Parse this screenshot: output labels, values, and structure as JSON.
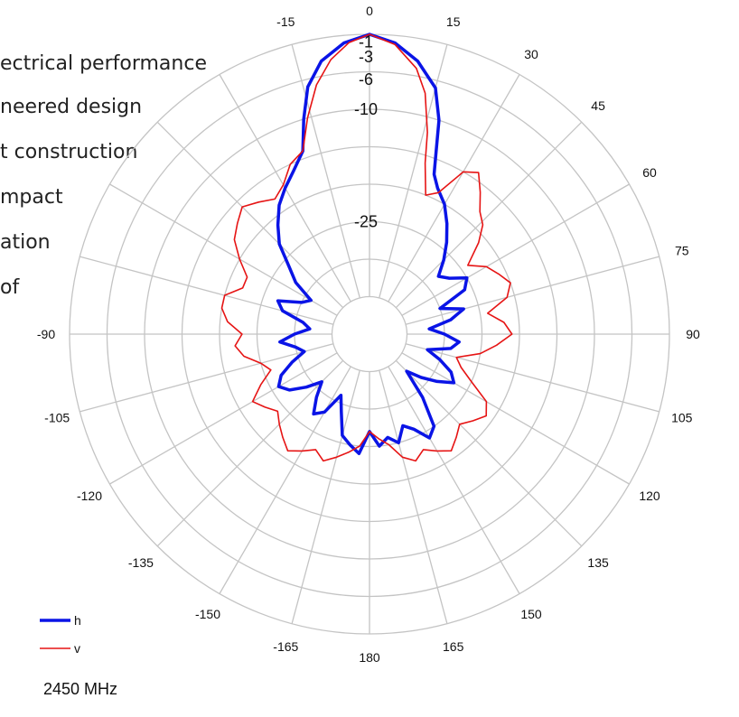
{
  "background_text": [
    "ectrical performance",
    "neered design",
    "t construction",
    "mpact",
    "ation",
    "of"
  ],
  "chart_data": {
    "type": "polar-line",
    "angle_ticks": [
      0,
      15,
      30,
      45,
      60,
      75,
      90,
      105,
      120,
      135,
      150,
      165,
      180,
      -165,
      -150,
      -135,
      -120,
      -105,
      -90,
      -75,
      -60,
      -45,
      -30,
      -15
    ],
    "angle_labels": [
      "0",
      "15",
      "30",
      "45",
      "60",
      "75",
      "90",
      "105",
      "120",
      "135",
      "150",
      "165",
      "180",
      "-165",
      "-150",
      "-135",
      "-120",
      "-105",
      "-90",
      "",
      "",
      "",
      "",
      "-15"
    ],
    "radial_labels": [
      "-1",
      "-3",
      "-6",
      "-10",
      "-25"
    ],
    "series": [
      {
        "name": "h",
        "color": "#0a14e6",
        "points": [
          [
            0,
            0
          ],
          [
            5,
            -1
          ],
          [
            10,
            -3
          ],
          [
            15,
            -6
          ],
          [
            18,
            -10
          ],
          [
            20,
            -14
          ],
          [
            22,
            -17
          ],
          [
            25,
            -18.5
          ],
          [
            30,
            -20
          ],
          [
            35,
            -22
          ],
          [
            40,
            -24
          ],
          [
            45,
            -26
          ],
          [
            50,
            -28
          ],
          [
            55,
            -27
          ],
          [
            60,
            -25
          ],
          [
            65,
            -26
          ],
          [
            70,
            -30
          ],
          [
            75,
            -27
          ],
          [
            80,
            -29
          ],
          [
            85,
            -32
          ],
          [
            90,
            -30
          ],
          [
            95,
            -28
          ],
          [
            100,
            -29
          ],
          [
            105,
            -32
          ],
          [
            110,
            -30
          ],
          [
            115,
            -28
          ],
          [
            120,
            -27
          ],
          [
            125,
            -29
          ],
          [
            130,
            -31
          ],
          [
            135,
            -33
          ],
          [
            140,
            -29
          ],
          [
            145,
            -25
          ],
          [
            150,
            -24
          ],
          [
            155,
            -26
          ],
          [
            160,
            -27
          ],
          [
            165,
            -25
          ],
          [
            170,
            -26
          ],
          [
            175,
            -25
          ],
          [
            180,
            -27
          ],
          [
            -175,
            -24
          ],
          [
            -170,
            -25
          ],
          [
            -165,
            -26
          ],
          [
            -160,
            -29
          ],
          [
            -155,
            -31
          ],
          [
            -150,
            -28
          ],
          [
            -145,
            -27
          ],
          [
            -140,
            -29
          ],
          [
            -135,
            -31
          ],
          [
            -130,
            -29
          ],
          [
            -125,
            -27
          ],
          [
            -120,
            -26
          ],
          [
            -115,
            -27
          ],
          [
            -110,
            -29
          ],
          [
            -105,
            -31
          ],
          [
            -100,
            -30
          ],
          [
            -95,
            -28
          ],
          [
            -90,
            -30
          ],
          [
            -85,
            -32
          ],
          [
            -80,
            -31
          ],
          [
            -75,
            -28
          ],
          [
            -70,
            -27
          ],
          [
            -65,
            -30
          ],
          [
            -60,
            -31
          ],
          [
            -55,
            -28
          ],
          [
            -50,
            -26
          ],
          [
            -45,
            -23
          ],
          [
            -40,
            -21
          ],
          [
            -35,
            -19
          ],
          [
            -30,
            -17.5
          ],
          [
            -25,
            -16
          ],
          [
            -20,
            -14
          ],
          [
            -17,
            -10
          ],
          [
            -14,
            -6
          ],
          [
            -10,
            -3
          ],
          [
            -5,
            -1
          ],
          [
            0,
            0
          ]
        ]
      },
      {
        "name": "v",
        "color": "#e61414",
        "points": [
          [
            0,
            0
          ],
          [
            5,
            -1.2
          ],
          [
            10,
            -4
          ],
          [
            13,
            -7
          ],
          [
            16,
            -12
          ],
          [
            18,
            -16
          ],
          [
            22,
            -20
          ],
          [
            26,
            -19
          ],
          [
            30,
            -15
          ],
          [
            34,
            -14
          ],
          [
            38,
            -16
          ],
          [
            42,
            -18
          ],
          [
            46,
            -19
          ],
          [
            50,
            -21
          ],
          [
            55,
            -24
          ],
          [
            60,
            -22
          ],
          [
            65,
            -21
          ],
          [
            70,
            -20
          ],
          [
            75,
            -21
          ],
          [
            80,
            -24
          ],
          [
            85,
            -22
          ],
          [
            90,
            -21
          ],
          [
            95,
            -23
          ],
          [
            100,
            -25
          ],
          [
            105,
            -28
          ],
          [
            110,
            -27
          ],
          [
            115,
            -25
          ],
          [
            120,
            -22
          ],
          [
            125,
            -21
          ],
          [
            130,
            -22
          ],
          [
            135,
            -23
          ],
          [
            140,
            -22
          ],
          [
            145,
            -21
          ],
          [
            150,
            -22
          ],
          [
            155,
            -23
          ],
          [
            160,
            -22
          ],
          [
            165,
            -23
          ],
          [
            170,
            -25
          ],
          [
            175,
            -26
          ],
          [
            180,
            -27
          ],
          [
            -175,
            -25
          ],
          [
            -170,
            -24
          ],
          [
            -165,
            -23
          ],
          [
            -160,
            -22
          ],
          [
            -155,
            -23
          ],
          [
            -150,
            -22
          ],
          [
            -145,
            -21
          ],
          [
            -140,
            -22
          ],
          [
            -135,
            -23
          ],
          [
            -130,
            -24
          ],
          [
            -125,
            -23
          ],
          [
            -120,
            -22
          ],
          [
            -115,
            -24
          ],
          [
            -110,
            -26
          ],
          [
            -105,
            -25
          ],
          [
            -100,
            -23
          ],
          [
            -95,
            -22
          ],
          [
            -90,
            -23
          ],
          [
            -85,
            -21
          ],
          [
            -80,
            -20
          ],
          [
            -75,
            -20
          ],
          [
            -70,
            -22
          ],
          [
            -65,
            -22
          ],
          [
            -60,
            -20
          ],
          [
            -55,
            -18
          ],
          [
            -50,
            -17
          ],
          [
            -45,
            -16
          ],
          [
            -40,
            -17
          ],
          [
            -35,
            -18
          ],
          [
            -30,
            -17
          ],
          [
            -25,
            -15
          ],
          [
            -20,
            -14
          ],
          [
            -16,
            -10
          ],
          [
            -12,
            -6
          ],
          [
            -8,
            -3
          ],
          [
            -4,
            -1
          ],
          [
            0,
            0
          ]
        ]
      }
    ],
    "legend": [
      {
        "label": "h",
        "color": "#0a14e6"
      },
      {
        "label": "v",
        "color": "#e61414"
      }
    ],
    "annotation": "2450 MHz"
  }
}
